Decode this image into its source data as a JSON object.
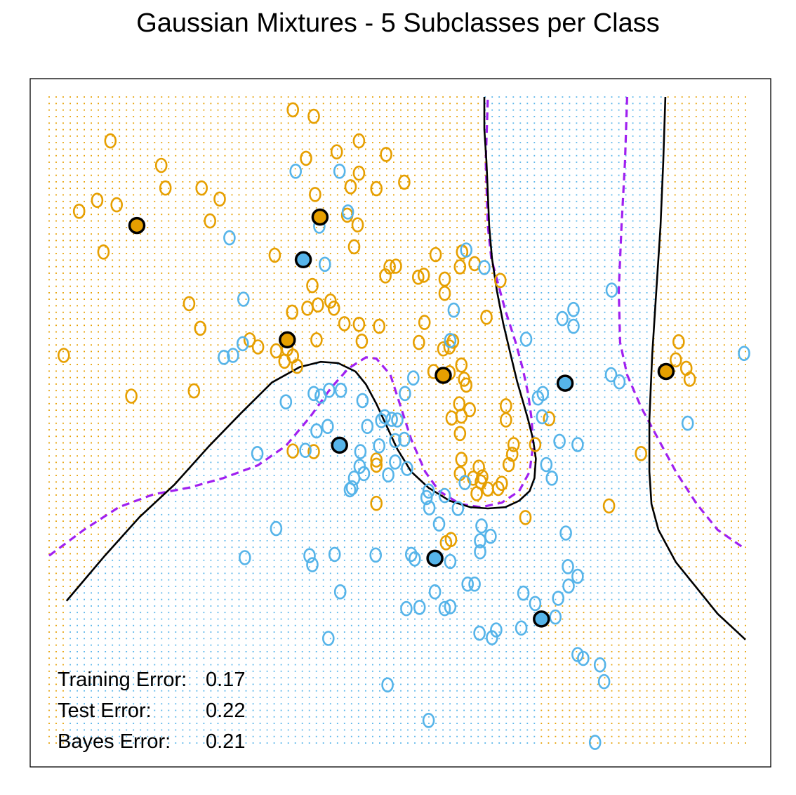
{
  "chart_data": {
    "type": "scatter",
    "title": "Gaussian Mixtures - 5 Subclasses per Class",
    "xlabel": "",
    "ylabel": "",
    "xlim": [
      0,
      1
    ],
    "ylim": [
      0,
      1
    ],
    "grid": false,
    "legend": "none",
    "colors": {
      "orange": "#E69F00",
      "blue": "#56B4E9",
      "bayes": "#A020F0",
      "boundary": "#000000"
    },
    "series": [
      {
        "class": "orange",
        "points": [
          [
            0.088,
            0.932
          ],
          [
            0.161,
            0.894
          ],
          [
            0.167,
            0.859
          ],
          [
            0.043,
            0.823
          ],
          [
            0.069,
            0.84
          ],
          [
            0.097,
            0.833
          ],
          [
            0.245,
            0.842
          ],
          [
            0.219,
            0.859
          ],
          [
            0.231,
            0.808
          ],
          [
            0.078,
            0.76
          ],
          [
            0.021,
            0.6
          ],
          [
            0.118,
            0.537
          ],
          [
            0.208,
            0.545
          ],
          [
            0.201,
            0.68
          ],
          [
            0.217,
            0.642
          ],
          [
            0.288,
            0.624
          ],
          [
            0.3,
            0.613
          ],
          [
            0.326,
            0.607
          ],
          [
            0.342,
            0.61
          ],
          [
            0.338,
            0.591
          ],
          [
            0.35,
            0.599
          ],
          [
            0.356,
            0.583
          ],
          [
            0.349,
            0.667
          ],
          [
            0.371,
            0.673
          ],
          [
            0.386,
            0.678
          ],
          [
            0.378,
            0.708
          ],
          [
            0.324,
            0.755
          ],
          [
            0.382,
            0.849
          ],
          [
            0.35,
            0.98
          ],
          [
            0.38,
            0.97
          ],
          [
            0.369,
            0.905
          ],
          [
            0.445,
            0.932
          ],
          [
            0.413,
            0.915
          ],
          [
            0.445,
            0.882
          ],
          [
            0.433,
            0.861
          ],
          [
            0.47,
            0.858
          ],
          [
            0.484,
            0.911
          ],
          [
            0.51,
            0.868
          ],
          [
            0.555,
            0.756
          ],
          [
            0.483,
            0.723
          ],
          [
            0.489,
            0.737
          ],
          [
            0.498,
            0.738
          ],
          [
            0.538,
            0.724
          ],
          [
            0.53,
            0.721
          ],
          [
            0.568,
            0.718
          ],
          [
            0.593,
            0.76
          ],
          [
            0.59,
            0.737
          ],
          [
            0.568,
            0.696
          ],
          [
            0.611,
            0.742
          ],
          [
            0.628,
            0.659
          ],
          [
            0.648,
            0.716
          ],
          [
            0.539,
            0.651
          ],
          [
            0.449,
            0.622
          ],
          [
            0.445,
            0.648
          ],
          [
            0.474,
            0.645
          ],
          [
            0.409,
            0.673
          ],
          [
            0.404,
            0.684
          ],
          [
            0.438,
            0.768
          ],
          [
            0.443,
            0.802
          ],
          [
            0.428,
            0.817
          ],
          [
            0.424,
            0.649
          ],
          [
            0.531,
            0.62
          ],
          [
            0.566,
            0.61
          ],
          [
            0.58,
            0.622
          ],
          [
            0.575,
            0.613
          ],
          [
            0.552,
            0.575
          ],
          [
            0.575,
            0.573
          ],
          [
            0.592,
            0.585
          ],
          [
            0.596,
            0.563
          ],
          [
            0.599,
            0.554
          ],
          [
            0.604,
            0.516
          ],
          [
            0.656,
            0.522
          ],
          [
            0.589,
            0.525
          ],
          [
            0.592,
            0.506
          ],
          [
            0.59,
            0.479
          ],
          [
            0.592,
            0.439
          ],
          [
            0.59,
            0.417
          ],
          [
            0.617,
            0.427
          ],
          [
            0.609,
            0.41
          ],
          [
            0.62,
            0.404
          ],
          [
            0.614,
            0.386
          ],
          [
            0.578,
            0.503
          ],
          [
            0.656,
            0.5
          ],
          [
            0.667,
            0.462
          ],
          [
            0.684,
            0.349
          ],
          [
            0.665,
            0.447
          ],
          [
            0.66,
            0.431
          ],
          [
            0.622,
            0.412
          ],
          [
            0.645,
            0.394
          ],
          [
            0.63,
            0.393
          ],
          [
            0.65,
            0.402
          ],
          [
            0.698,
            0.462
          ],
          [
            0.718,
            0.502
          ],
          [
            0.47,
            0.371
          ],
          [
            0.577,
            0.315
          ],
          [
            0.57,
            0.31
          ],
          [
            0.47,
            0.43
          ],
          [
            0.47,
            0.438
          ],
          [
            0.35,
            0.452
          ],
          [
            0.38,
            0.451
          ],
          [
            0.904,
            0.621
          ],
          [
            0.9,
            0.593
          ],
          [
            0.915,
            0.58
          ],
          [
            0.92,
            0.563
          ],
          [
            0.85,
            0.448
          ],
          [
            0.804,
            0.367
          ],
          [
            0.384,
            0.624
          ]
        ]
      },
      {
        "class": "blue",
        "points": [
          [
            0.354,
            0.885
          ],
          [
            0.417,
            0.885
          ],
          [
            0.429,
            0.822
          ],
          [
            0.388,
            0.8
          ],
          [
            0.259,
            0.782
          ],
          [
            0.279,
            0.687
          ],
          [
            0.396,
            0.741
          ],
          [
            0.251,
            0.597
          ],
          [
            0.264,
            0.6
          ],
          [
            0.278,
            0.618
          ],
          [
            0.34,
            0.528
          ],
          [
            0.38,
            0.541
          ],
          [
            0.39,
            0.537
          ],
          [
            0.402,
            0.546
          ],
          [
            0.419,
            0.546
          ],
          [
            0.45,
            0.53
          ],
          [
            0.482,
            0.505
          ],
          [
            0.477,
            0.499
          ],
          [
            0.492,
            0.501
          ],
          [
            0.511,
            0.541
          ],
          [
            0.576,
            0.623
          ],
          [
            0.599,
            0.763
          ],
          [
            0.625,
            0.736
          ],
          [
            0.581,
            0.67
          ],
          [
            0.685,
            0.625
          ],
          [
            0.737,
            0.657
          ],
          [
            0.702,
            0.534
          ],
          [
            0.709,
            0.541
          ],
          [
            0.708,
            0.505
          ],
          [
            0.753,
            0.671
          ],
          [
            0.753,
            0.645
          ],
          [
            0.807,
            0.57
          ],
          [
            0.819,
            0.559
          ],
          [
            0.733,
            0.467
          ],
          [
            0.759,
            0.462
          ],
          [
            0.714,
            0.431
          ],
          [
            0.742,
            0.325
          ],
          [
            0.722,
            0.41
          ],
          [
            0.808,
            0.701
          ],
          [
            0.998,
            0.603
          ],
          [
            0.917,
            0.495
          ],
          [
            0.299,
            0.448
          ],
          [
            0.368,
            0.453
          ],
          [
            0.384,
            0.483
          ],
          [
            0.4,
            0.49
          ],
          [
            0.457,
            0.49
          ],
          [
            0.447,
            0.451
          ],
          [
            0.452,
            0.417
          ],
          [
            0.446,
            0.428
          ],
          [
            0.438,
            0.41
          ],
          [
            0.435,
            0.395
          ],
          [
            0.432,
            0.392
          ],
          [
            0.487,
            0.415
          ],
          [
            0.497,
            0.435
          ],
          [
            0.51,
            0.47
          ],
          [
            0.514,
            0.425
          ],
          [
            0.545,
            0.39
          ],
          [
            0.542,
            0.38
          ],
          [
            0.568,
            0.383
          ],
          [
            0.546,
            0.364
          ],
          [
            0.587,
            0.363
          ],
          [
            0.56,
            0.339
          ],
          [
            0.597,
            0.403
          ],
          [
            0.621,
            0.336
          ],
          [
            0.634,
            0.32
          ],
          [
            0.619,
            0.313
          ],
          [
            0.474,
            0.46
          ],
          [
            0.326,
            0.332
          ],
          [
            0.374,
            0.29
          ],
          [
            0.281,
            0.287
          ],
          [
            0.41,
            0.292
          ],
          [
            0.378,
            0.276
          ],
          [
            0.469,
            0.291
          ],
          [
            0.52,
            0.292
          ],
          [
            0.554,
            0.234
          ],
          [
            0.568,
            0.208
          ],
          [
            0.576,
            0.211
          ],
          [
            0.532,
            0.21
          ],
          [
            0.513,
            0.208
          ],
          [
            0.601,
            0.246
          ],
          [
            0.611,
            0.246
          ],
          [
            0.619,
            0.296
          ],
          [
            0.636,
            0.163
          ],
          [
            0.618,
            0.17
          ],
          [
            0.642,
            0.175
          ],
          [
            0.678,
            0.178
          ],
          [
            0.681,
            0.232
          ],
          [
            0.698,
            0.216
          ],
          [
            0.745,
            0.273
          ],
          [
            0.731,
            0.224
          ],
          [
            0.746,
            0.243
          ],
          [
            0.727,
            0.195
          ],
          [
            0.759,
            0.137
          ],
          [
            0.759,
            0.258
          ],
          [
            0.767,
            0.131
          ],
          [
            0.791,
            0.121
          ],
          [
            0.797,
            0.095
          ],
          [
            0.486,
            0.09
          ],
          [
            0.545,
            0.035
          ],
          [
            0.784,
            0.001
          ],
          [
            0.576,
            0.281
          ],
          [
            0.525,
            0.285
          ],
          [
            0.418,
            0.234
          ],
          [
            0.401,
            0.162
          ],
          [
            0.5,
            0.5
          ],
          [
            0.523,
            0.565
          ],
          [
            0.497,
            0.468
          ]
        ]
      }
    ],
    "centroids": {
      "orange": [
        [
          0.126,
          0.801
        ],
        [
          0.389,
          0.814
        ],
        [
          0.342,
          0.624
        ],
        [
          0.566,
          0.569
        ],
        [
          0.886,
          0.575
        ]
      ],
      "blue": [
        [
          0.365,
          0.748
        ],
        [
          0.417,
          0.461
        ],
        [
          0.554,
          0.286
        ],
        [
          0.741,
          0.557
        ],
        [
          0.707,
          0.192
        ]
      ]
    },
    "boundary_fitted": [
      [
        0.025,
        0.22
      ],
      [
        0.08,
        0.29
      ],
      [
        0.13,
        0.35
      ],
      [
        0.18,
        0.4
      ],
      [
        0.23,
        0.46
      ],
      [
        0.275,
        0.51
      ],
      [
        0.32,
        0.558
      ],
      [
        0.36,
        0.582
      ],
      [
        0.39,
        0.59
      ],
      [
        0.415,
        0.588
      ],
      [
        0.44,
        0.575
      ],
      [
        0.455,
        0.555
      ],
      [
        0.47,
        0.525
      ],
      [
        0.485,
        0.49
      ],
      [
        0.5,
        0.455
      ],
      [
        0.52,
        0.42
      ],
      [
        0.545,
        0.395
      ],
      [
        0.575,
        0.375
      ],
      [
        0.605,
        0.365
      ],
      [
        0.63,
        0.363
      ],
      [
        0.655,
        0.365
      ],
      [
        0.675,
        0.375
      ],
      [
        0.69,
        0.39
      ],
      [
        0.697,
        0.41
      ],
      [
        0.699,
        0.44
      ],
      [
        0.695,
        0.47
      ],
      [
        0.688,
        0.5
      ],
      [
        0.68,
        0.53
      ],
      [
        0.672,
        0.56
      ],
      [
        0.663,
        0.6
      ],
      [
        0.652,
        0.65
      ],
      [
        0.643,
        0.7
      ],
      [
        0.636,
        0.75
      ],
      [
        0.632,
        0.8
      ],
      [
        0.63,
        0.85
      ],
      [
        0.628,
        0.9
      ],
      [
        0.625,
        0.95
      ],
      [
        0.625,
        1.0
      ]
    ],
    "boundary_fitted_2": [
      [
        0.885,
        1.0
      ],
      [
        0.882,
        0.9
      ],
      [
        0.878,
        0.8
      ],
      [
        0.872,
        0.7
      ],
      [
        0.866,
        0.6
      ],
      [
        0.862,
        0.5
      ],
      [
        0.862,
        0.42
      ],
      [
        0.865,
        0.37
      ],
      [
        0.875,
        0.33
      ],
      [
        0.9,
        0.28
      ],
      [
        0.93,
        0.24
      ],
      [
        0.96,
        0.2
      ],
      [
        0.99,
        0.17
      ],
      [
        1.0,
        0.16
      ]
    ],
    "boundary_bayes": [
      [
        0.0,
        0.29
      ],
      [
        0.05,
        0.33
      ],
      [
        0.1,
        0.365
      ],
      [
        0.15,
        0.385
      ],
      [
        0.2,
        0.395
      ],
      [
        0.25,
        0.41
      ],
      [
        0.3,
        0.43
      ],
      [
        0.34,
        0.46
      ],
      [
        0.375,
        0.505
      ],
      [
        0.405,
        0.55
      ],
      [
        0.43,
        0.58
      ],
      [
        0.455,
        0.597
      ],
      [
        0.47,
        0.595
      ],
      [
        0.49,
        0.57
      ],
      [
        0.505,
        0.52
      ],
      [
        0.52,
        0.47
      ],
      [
        0.54,
        0.42
      ],
      [
        0.56,
        0.39
      ],
      [
        0.59,
        0.37
      ],
      [
        0.62,
        0.365
      ],
      [
        0.65,
        0.372
      ],
      [
        0.675,
        0.39
      ],
      [
        0.69,
        0.42
      ],
      [
        0.695,
        0.46
      ],
      [
        0.693,
        0.5
      ],
      [
        0.688,
        0.54
      ],
      [
        0.68,
        0.58
      ],
      [
        0.67,
        0.62
      ],
      [
        0.655,
        0.67
      ],
      [
        0.645,
        0.71
      ],
      [
        0.635,
        0.75
      ],
      [
        0.63,
        0.8
      ],
      [
        0.627,
        0.9
      ],
      [
        0.63,
        1.0
      ]
    ],
    "boundary_bayes_2": [
      [
        0.83,
        1.0
      ],
      [
        0.827,
        0.9
      ],
      [
        0.822,
        0.8
      ],
      [
        0.818,
        0.7
      ],
      [
        0.82,
        0.62
      ],
      [
        0.83,
        0.57
      ],
      [
        0.85,
        0.52
      ],
      [
        0.875,
        0.47
      ],
      [
        0.9,
        0.42
      ],
      [
        0.93,
        0.37
      ],
      [
        0.96,
        0.33
      ],
      [
        1.0,
        0.3
      ]
    ],
    "annotations": {
      "training_label": "Training Error:",
      "training_value": "0.17",
      "test_label": "Test Error:",
      "test_value": "0.22",
      "bayes_label": "Bayes Error:",
      "bayes_value": "0.21"
    }
  }
}
